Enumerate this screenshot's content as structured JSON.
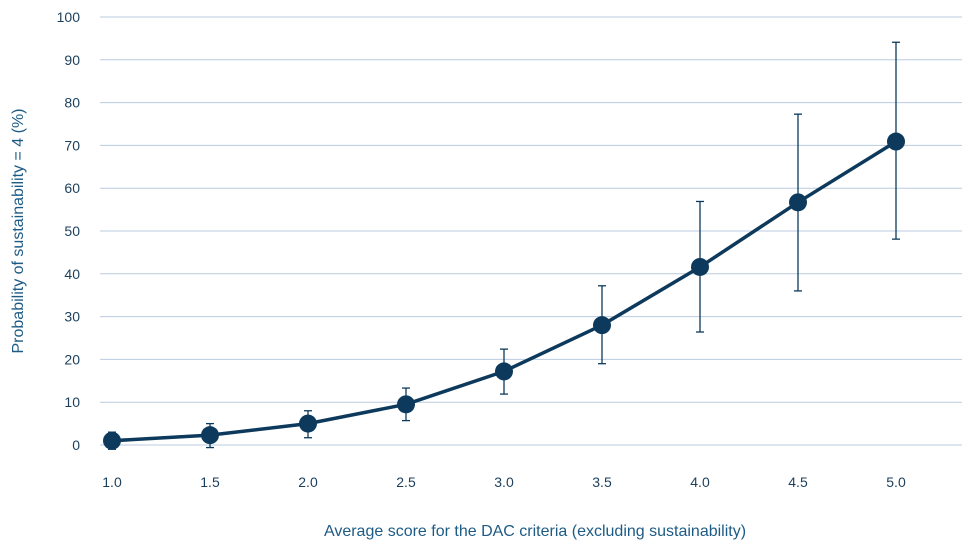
{
  "chart_data": {
    "type": "line",
    "xlabel": "Average score for the DAC criteria (excluding sustainability)",
    "ylabel": "Probability of sustainability = 4 (%)",
    "x": [
      1.0,
      1.5,
      2.0,
      2.5,
      3.0,
      3.5,
      4.0,
      4.5,
      5.0
    ],
    "x_tick_labels": [
      "1.0",
      "1.5",
      "2.0",
      "2.5",
      "3.0",
      "3.5",
      "4.0",
      "4.5",
      "5.0"
    ],
    "y_tick_labels": [
      "0",
      "10",
      "20",
      "30",
      "40",
      "50",
      "60",
      "70",
      "80",
      "90",
      "100"
    ],
    "ylim": [
      0,
      100
    ],
    "grid": true,
    "series": [
      {
        "values": [
          1.0,
          2.3,
          5.0,
          9.5,
          17.2,
          28.0,
          41.6,
          56.7,
          70.9
        ],
        "error_low": [
          -1.0,
          -0.6,
          1.7,
          5.7,
          11.9,
          19.0,
          26.4,
          36.0,
          48.1
        ],
        "error_high": [
          3.0,
          5.0,
          8.0,
          13.3,
          22.4,
          37.2,
          56.9,
          77.3,
          94.1
        ],
        "color": "#0d3a5c"
      }
    ]
  }
}
